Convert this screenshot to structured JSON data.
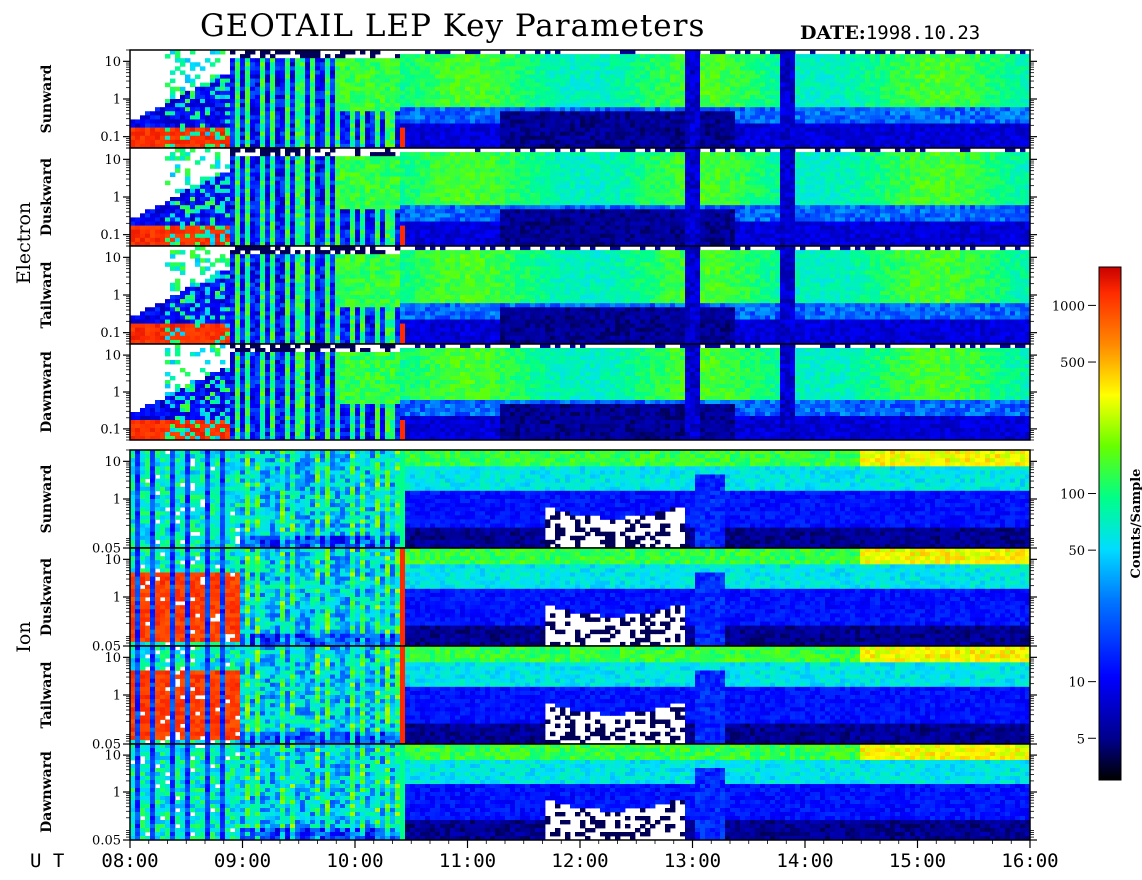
{
  "header": {
    "title": "GEOTAIL LEP Key Parameters",
    "date_label": "DATE:",
    "date_value": "1998.10.23"
  },
  "chart_data": {
    "type": "heatmap",
    "title": "GEOTAIL LEP Key Parameters",
    "x_axis": {
      "label": "U T",
      "ticks": [
        "08:00",
        "09:00",
        "10:00",
        "11:00",
        "12:00",
        "13:00",
        "14:00",
        "15:00",
        "16:00"
      ],
      "range": [
        "08:00",
        "16:00"
      ]
    },
    "groups": [
      {
        "name": "Electron",
        "y_scale": "log",
        "y_range": [
          0.05,
          20
        ],
        "y_ticks": [
          "10",
          "1",
          "0.1"
        ],
        "panels": [
          "Sunward",
          "Duskward",
          "Tailward",
          "Dawnward"
        ]
      },
      {
        "name": "Ion",
        "y_scale": "log",
        "y_range": [
          0.05,
          20
        ],
        "y_ticks": [
          "10",
          "1",
          "0.05"
        ],
        "panels": [
          "Sunward",
          "Duskward",
          "Tailward",
          "Dawnward"
        ]
      }
    ],
    "colorbar": {
      "label": "Counts/Sample",
      "scale": "log",
      "range": [
        3,
        1600
      ],
      "ticks": [
        "1000",
        "500",
        "100",
        "50",
        "10",
        "5"
      ],
      "colors": [
        "#000000",
        "#00008b",
        "#0000ff",
        "#0077ff",
        "#00ddff",
        "#00ff88",
        "#66ff00",
        "#ffff00",
        "#ff8800",
        "#ff2a00",
        "#c80000"
      ]
    },
    "features": {
      "electron_cold_population_until": "09:00",
      "boundary_crossing": "10:25",
      "ion_hot_population_until": "09:00",
      "ion_depletion_intervals": [
        [
          "11:40",
          "12:55"
        ]
      ]
    }
  }
}
